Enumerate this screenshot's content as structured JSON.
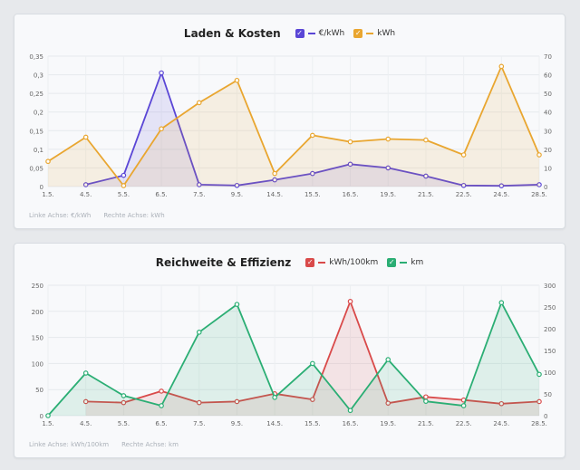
{
  "charts": [
    {
      "id": "kosten",
      "title": "Laden & Kosten",
      "legend": [
        {
          "label": "€/kWh",
          "color": "#5a46d6"
        },
        {
          "label": "kWh",
          "color": "#e9a630"
        }
      ],
      "axis_notes": [
        "Linke Achse: €/kWh",
        "Rechte Achse: kWh"
      ]
    },
    {
      "id": "reichweite",
      "title": "Reichweite & Effizienz",
      "legend": [
        {
          "label": "kWh/100km",
          "color": "#d94a4a"
        },
        {
          "label": "km",
          "color": "#2bae74"
        }
      ],
      "axis_notes": [
        "Linke Achse: kWh/100km",
        "Rechte Achse: km"
      ]
    }
  ],
  "chart_data": [
    {
      "type": "line",
      "title": "Laden & Kosten",
      "categories": [
        "1.5.",
        "4.5.",
        "5.5.",
        "6.5.",
        "7.5.",
        "9.5.",
        "14.5.",
        "15.5.",
        "16.5.",
        "19.5.",
        "21.5.",
        "22.5.",
        "24.5.",
        "28.5."
      ],
      "left_axis": {
        "ylim": [
          0,
          0.35
        ],
        "ticks": [
          "0",
          "0,05",
          "0,1",
          "0,15",
          "0,2",
          "0,25",
          "0,3",
          "0,35"
        ]
      },
      "right_axis": {
        "ylim": [
          0,
          70
        ],
        "ticks": [
          "0",
          "10",
          "20",
          "30",
          "40",
          "50",
          "60",
          "70"
        ]
      },
      "series": [
        {
          "name": "€/kWh",
          "axis": "left",
          "color": "#5a46d6",
          "values": [
            null,
            0.005,
            0.03,
            0.305,
            0.005,
            0.003,
            0.018,
            0.035,
            0.06,
            0.05,
            0.028,
            0.003,
            0.002,
            0.005
          ]
        },
        {
          "name": "kWh",
          "axis": "right",
          "color": "#e9a630",
          "values": [
            13.5,
            26.5,
            0.5,
            31,
            45,
            57,
            7,
            27.5,
            24,
            25.5,
            25,
            17,
            64.5,
            17
          ]
        }
      ],
      "grid": true
    },
    {
      "type": "line",
      "title": "Reichweite & Effizienz",
      "categories": [
        "1.5.",
        "4.5.",
        "5.5.",
        "6.5.",
        "7.5.",
        "9.5.",
        "14.5.",
        "15.5.",
        "16.5.",
        "19.5.",
        "21.5.",
        "22.5.",
        "24.5.",
        "28.5."
      ],
      "left_axis": {
        "ylim": [
          0,
          250
        ],
        "ticks": [
          "0",
          "50",
          "100",
          "150",
          "200",
          "250"
        ]
      },
      "right_axis": {
        "ylim": [
          0,
          300
        ],
        "ticks": [
          "0",
          "50",
          "100",
          "150",
          "200",
          "250",
          "300"
        ]
      },
      "series": [
        {
          "name": "kWh/100km",
          "axis": "left",
          "color": "#d94a4a",
          "values": [
            null,
            27,
            25,
            47,
            25,
            27,
            42,
            31,
            219,
            24,
            36,
            30,
            23,
            27
          ]
        },
        {
          "name": "km",
          "axis": "right",
          "color": "#2bae74",
          "values": [
            0,
            98,
            46,
            23,
            192,
            256,
            42,
            120,
            12,
            129,
            33,
            23,
            260,
            95
          ]
        }
      ],
      "grid": true
    }
  ]
}
